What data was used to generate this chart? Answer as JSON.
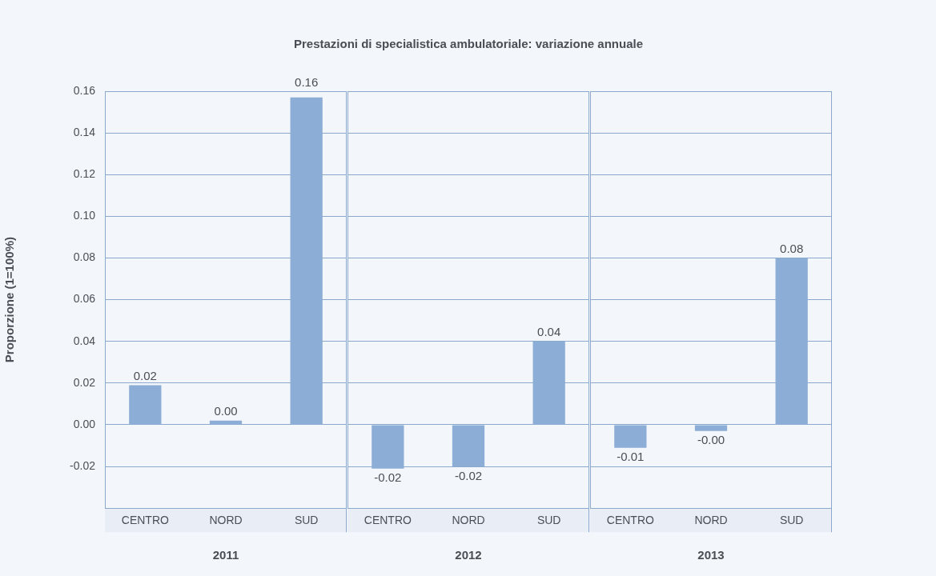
{
  "chart_data": [
    {
      "type": "bar",
      "title": "Prestazioni di specialistica ambulatoriale: variazione annuale",
      "xlabel": "2011",
      "ylabel": "Proporzione (1=100%)",
      "categories": [
        "CENTRO",
        "NORD",
        "SUD"
      ],
      "values": [
        0.019,
        0.002,
        0.157
      ],
      "value_labels": [
        "0.02",
        "0.00",
        "0.16"
      ],
      "color": "#8cadd5",
      "ylim": [
        -0.04,
        0.16
      ],
      "yticks": [
        {
          "value": -0.02,
          "label": "-0.02"
        },
        {
          "value": 0,
          "label": "0.00"
        },
        {
          "value": 0.02,
          "label": "0.02"
        },
        {
          "value": 0.04,
          "label": "0.04"
        },
        {
          "value": 0.06,
          "label": "0.06"
        },
        {
          "value": 0.08,
          "label": "0.08"
        },
        {
          "value": 0.1,
          "label": "0.10"
        },
        {
          "value": 0.12,
          "label": "0.12"
        },
        {
          "value": 0.14,
          "label": "0.14"
        },
        {
          "value": 0.16,
          "label": "0.16"
        }
      ],
      "grid": "y"
    },
    {
      "type": "bar",
      "xlabel": "2012",
      "categories": [
        "CENTRO",
        "NORD",
        "SUD"
      ],
      "values": [
        -0.021,
        -0.02,
        0.04
      ],
      "value_labels": [
        "-0.02",
        "-0.02",
        "0.04"
      ],
      "color": "#8cadd5",
      "ylim": [
        -0.04,
        0.16
      ],
      "yticks": [
        -0.02,
        0.0,
        0.02,
        0.04,
        0.06,
        0.08,
        0.1,
        0.12,
        0.14,
        0.16
      ],
      "grid": "y",
      "tick_labels": "x"
    },
    {
      "type": "bar",
      "xlabel": "2013",
      "categories": [
        "CENTRO",
        "NORD",
        "SUD"
      ],
      "values": [
        -0.011,
        -0.003,
        0.08
      ],
      "value_labels": [
        "-0.01",
        "-0.00",
        "0.08"
      ],
      "color": "#8cadd5",
      "ylim": [
        -0.04,
        0.16
      ],
      "yticks": [
        -0.02,
        0.0,
        0.02,
        0.04,
        0.06,
        0.08,
        0.1,
        0.12,
        0.14,
        0.16
      ],
      "grid": "y",
      "tick_labels": "x"
    }
  ]
}
